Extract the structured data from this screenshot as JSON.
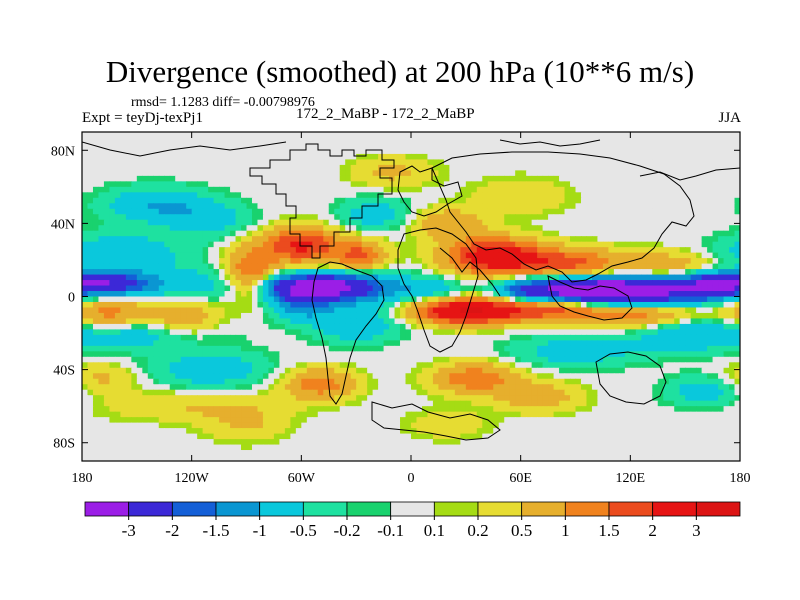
{
  "chart_data": {
    "type": "heatmap",
    "title": "Divergence (smoothed) at 200 hPa (10**6 m/s)",
    "stats": "rmsd= 1.1283 diff= -0.00798976",
    "expt": "Expt = teyDj-texPj1",
    "period": "172_2_MaBP - 172_2_MaBP",
    "season": "JJA",
    "xlim": [
      -180,
      180
    ],
    "ylim": [
      -90,
      90
    ],
    "x_ticks": [
      {
        "value": -180,
        "label": "180"
      },
      {
        "value": -120,
        "label": "120W"
      },
      {
        "value": -60,
        "label": "60W"
      },
      {
        "value": 0,
        "label": "0"
      },
      {
        "value": 60,
        "label": "60E"
      },
      {
        "value": 120,
        "label": "120E"
      },
      {
        "value": 180,
        "label": "180"
      }
    ],
    "y_ticks": [
      {
        "value": 80,
        "label": "80N"
      },
      {
        "value": 40,
        "label": "40N"
      },
      {
        "value": 0,
        "label": "0"
      },
      {
        "value": -40,
        "label": "40S"
      },
      {
        "value": -80,
        "label": "80S"
      }
    ],
    "levels": [
      "-3",
      "-2",
      "-1.5",
      "-1",
      "-0.5",
      "-0.2",
      "-0.1",
      "0.1",
      "0.2",
      "0.5",
      "1",
      "1.5",
      "2",
      "3"
    ],
    "colors": [
      "#9b1ee6",
      "#3c28d7",
      "#145fd7",
      "#0a96d2",
      "#0ac8dc",
      "#1ee1a0",
      "#19d26e",
      "#e6e6e6",
      "#a5dc14",
      "#e6dc32",
      "#e6af2d",
      "#f0821e",
      "#eb4b1e",
      "#e61414",
      "#dc1414"
    ],
    "features": [
      {
        "lon": -175,
        "lat": 7,
        "w": 20,
        "h": 5,
        "v": -1.2
      },
      {
        "lon": -165,
        "lat": 7,
        "w": 14,
        "h": 4,
        "v": -1.5
      },
      {
        "lon": -120,
        "lat": 6,
        "w": 34,
        "h": 7,
        "v": -0.8
      },
      {
        "lon": -70,
        "lat": 5,
        "w": 12,
        "h": 5,
        "v": -1.5
      },
      {
        "lon": -48,
        "lat": 5,
        "w": 14,
        "h": 5,
        "v": -3.0
      },
      {
        "lon": -25,
        "lat": 5,
        "w": 16,
        "h": 6,
        "v": -1.5
      },
      {
        "lon": 10,
        "lat": 4,
        "w": 14,
        "h": 5,
        "v": -0.8
      },
      {
        "lon": 65,
        "lat": 3,
        "w": 14,
        "h": 5,
        "v": -2.0
      },
      {
        "lon": 95,
        "lat": 3,
        "w": 18,
        "h": 5,
        "v": -3.5
      },
      {
        "lon": 130,
        "lat": 3,
        "w": 22,
        "h": 6,
        "v": -3.5
      },
      {
        "lon": 165,
        "lat": 6,
        "w": 12,
        "h": 5,
        "v": -2.0
      },
      {
        "lon": -160,
        "lat": 24,
        "w": 24,
        "h": 7,
        "v": -1.0
      },
      {
        "lon": -140,
        "lat": 50,
        "w": 20,
        "h": 7,
        "v": -1.0
      },
      {
        "lon": -110,
        "lat": 42,
        "w": 16,
        "h": 7,
        "v": -0.7
      },
      {
        "lon": -20,
        "lat": 45,
        "w": 14,
        "h": 6,
        "v": -0.8
      },
      {
        "lon": -60,
        "lat": -5,
        "w": 12,
        "h": 6,
        "v": -1.2
      },
      {
        "lon": -30,
        "lat": -15,
        "w": 16,
        "h": 7,
        "v": -1.0
      },
      {
        "lon": -150,
        "lat": -20,
        "w": 28,
        "h": 6,
        "v": -1.0
      },
      {
        "lon": -110,
        "lat": -40,
        "w": 22,
        "h": 7,
        "v": -0.9
      },
      {
        "lon": 90,
        "lat": -30,
        "w": 24,
        "h": 6,
        "v": -0.8
      },
      {
        "lon": 150,
        "lat": -20,
        "w": 22,
        "h": 7,
        "v": -1.0
      },
      {
        "lon": 160,
        "lat": -52,
        "w": 14,
        "h": 6,
        "v": -0.8
      },
      {
        "lon": -120,
        "lat": -60,
        "w": 34,
        "h": 6,
        "v": 0.5
      },
      {
        "lon": -60,
        "lat": 28,
        "w": 14,
        "h": 7,
        "v": 2.2
      },
      {
        "lon": -28,
        "lat": 22,
        "w": 10,
        "h": 6,
        "v": 1.6
      },
      {
        "lon": -88,
        "lat": 12,
        "w": 10,
        "h": 10,
        "v": 1.7
      },
      {
        "lon": -165,
        "lat": -10,
        "w": 16,
        "h": 7,
        "v": 1.3
      },
      {
        "lon": -125,
        "lat": -12,
        "w": 14,
        "h": 8,
        "v": 1.1
      },
      {
        "lon": 45,
        "lat": 22,
        "w": 18,
        "h": 7,
        "v": 2.6
      },
      {
        "lon": 85,
        "lat": 18,
        "w": 20,
        "h": 6,
        "v": 1.6
      },
      {
        "lon": 140,
        "lat": 16,
        "w": 22,
        "h": 6,
        "v": 1.0
      },
      {
        "lon": 30,
        "lat": -8,
        "w": 20,
        "h": 5,
        "v": 3.0
      },
      {
        "lon": 75,
        "lat": -6,
        "w": 20,
        "h": 5,
        "v": 1.8
      },
      {
        "lon": 125,
        "lat": -9,
        "w": 24,
        "h": 6,
        "v": 1.6
      },
      {
        "lon": 20,
        "lat": 40,
        "w": 14,
        "h": 6,
        "v": 0.9
      },
      {
        "lon": -10,
        "lat": 68,
        "w": 16,
        "h": 6,
        "v": 0.6
      },
      {
        "lon": 60,
        "lat": 55,
        "w": 18,
        "h": 7,
        "v": 0.5
      },
      {
        "lon": -50,
        "lat": -48,
        "w": 14,
        "h": 6,
        "v": 1.3
      },
      {
        "lon": 35,
        "lat": -45,
        "w": 16,
        "h": 6,
        "v": 1.4
      },
      {
        "lon": 70,
        "lat": -55,
        "w": 16,
        "h": 6,
        "v": 0.8
      },
      {
        "lon": -170,
        "lat": -45,
        "w": 14,
        "h": 6,
        "v": 0.6
      },
      {
        "lon": -90,
        "lat": -70,
        "w": 16,
        "h": 7,
        "v": 0.5
      },
      {
        "lon": 20,
        "lat": -70,
        "w": 16,
        "h": 6,
        "v": 0.4
      }
    ],
    "colorbar_tick_every": 1
  }
}
